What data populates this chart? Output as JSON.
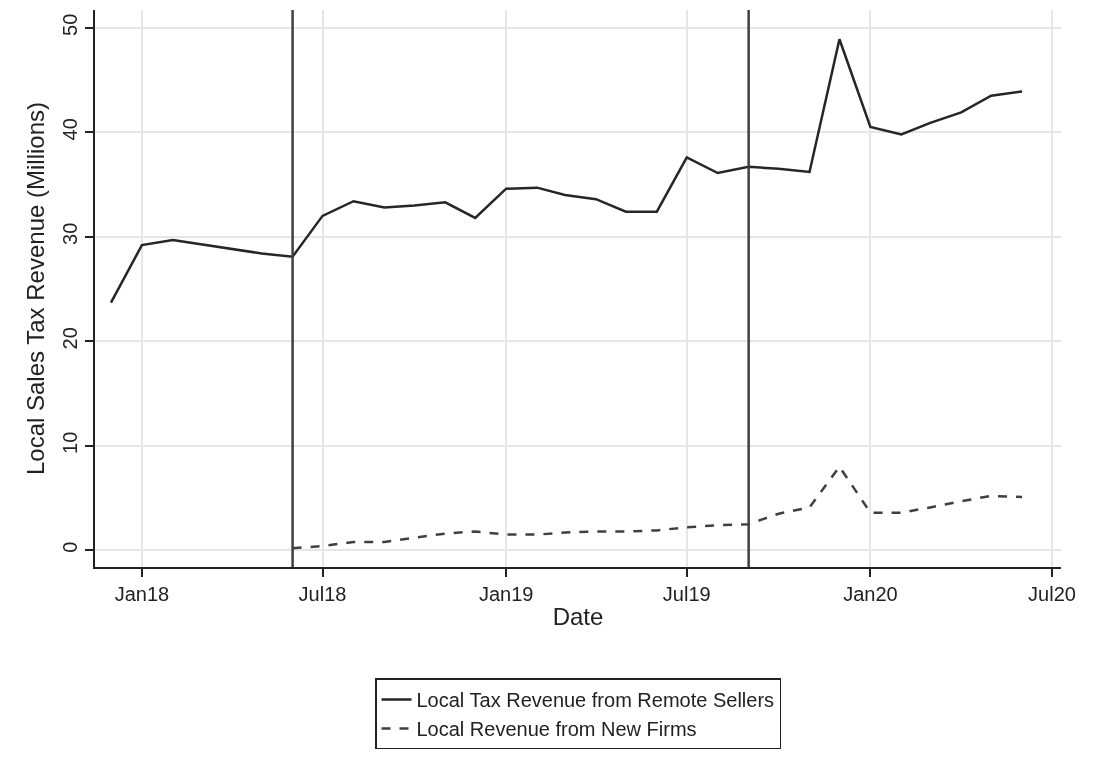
{
  "chart_data": {
    "type": "line",
    "xlabel": "Date",
    "ylabel": "Local Sales Tax Revenue (Millions)",
    "xlim": [
      "2017-11-15",
      "2020-07-10"
    ],
    "ylim": [
      -1.6,
      51.7
    ],
    "xticks": [
      {
        "value": "2018-01",
        "label": "Jan18"
      },
      {
        "value": "2018-07",
        "label": "Jul18"
      },
      {
        "value": "2019-01",
        "label": "Jan19"
      },
      {
        "value": "2019-07",
        "label": "Jul19"
      },
      {
        "value": "2020-01",
        "label": "Jan20"
      },
      {
        "value": "2020-07",
        "label": "Jul20"
      }
    ],
    "yticks": [
      0,
      10,
      20,
      30,
      40,
      50
    ],
    "grid": true,
    "legend": "bottom",
    "marker": "none",
    "ref_lines": [
      {
        "axis": "x",
        "value": "2018-06",
        "color": "#404040"
      },
      {
        "axis": "x",
        "value": "2019-09",
        "color": "#404040"
      }
    ],
    "series": [
      {
        "name": "Local Tax Revenue from Remote Sellers",
        "color": "#262626",
        "line_style": "solid",
        "x": [
          "2017-12",
          "2018-01",
          "2018-02",
          "2018-05",
          "2018-06",
          "2018-07",
          "2018-08",
          "2018-09",
          "2018-10",
          "2018-11",
          "2018-12",
          "2019-01",
          "2019-02",
          "2019-03",
          "2019-04",
          "2019-05",
          "2019-06",
          "2019-07",
          "2019-08",
          "2019-09",
          "2019-10",
          "2019-11",
          "2019-12",
          "2020-01",
          "2020-02",
          "2020-03",
          "2020-04",
          "2020-05",
          "2020-06"
        ],
        "values": [
          23.7,
          29.2,
          29.7,
          28.4,
          28.1,
          32.0,
          33.4,
          32.8,
          33.0,
          33.3,
          31.8,
          34.6,
          34.7,
          34.0,
          33.6,
          32.4,
          32.4,
          37.6,
          36.1,
          36.7,
          36.5,
          36.2,
          48.9,
          40.5,
          39.8,
          40.9,
          41.9,
          43.5,
          43.9
        ]
      },
      {
        "name": "Local Revenue from New Firms",
        "color": "#404040",
        "line_style": "dashed",
        "x": [
          "2018-06",
          "2018-07",
          "2018-08",
          "2018-09",
          "2018-10",
          "2018-11",
          "2018-12",
          "2019-01",
          "2019-02",
          "2019-03",
          "2019-04",
          "2019-05",
          "2019-06",
          "2019-07",
          "2019-08",
          "2019-09",
          "2019-10",
          "2019-11",
          "2019-12",
          "2020-01",
          "2020-02",
          "2020-03",
          "2020-04",
          "2020-05",
          "2020-06"
        ],
        "values": [
          0.2,
          0.4,
          0.8,
          0.8,
          1.2,
          1.6,
          1.8,
          1.5,
          1.5,
          1.7,
          1.8,
          1.8,
          1.9,
          2.2,
          2.4,
          2.5,
          3.5,
          4.1,
          8.0,
          3.6,
          3.6,
          4.1,
          4.7,
          5.2,
          5.1
        ]
      }
    ]
  }
}
